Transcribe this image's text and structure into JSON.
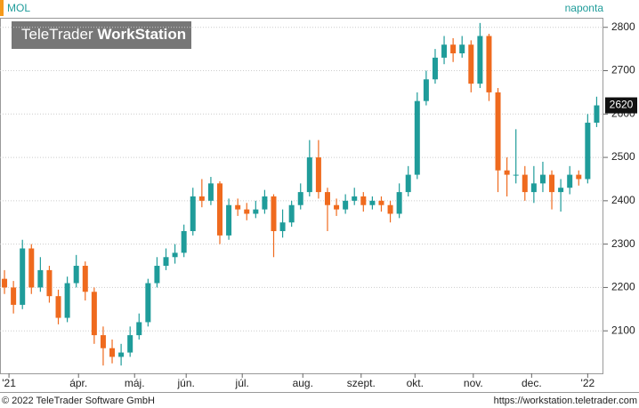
{
  "chart_data": {
    "type": "candlestick",
    "title": "MOL",
    "subtitle": "naponta",
    "watermark": {
      "brand": "TeleTrader",
      "product": "WorkStation"
    },
    "up_color": "#1f9c9a",
    "down_color": "#ef6a1e",
    "x": [
      1,
      5,
      9,
      13,
      17,
      21,
      25,
      29,
      33,
      37,
      41,
      45,
      49,
      53,
      57,
      61,
      65,
      69,
      73,
      77,
      81,
      85,
      89,
      93,
      97,
      101,
      105,
      109,
      113,
      117,
      121,
      125,
      129,
      133,
      137,
      141,
      145,
      149,
      153,
      157,
      161,
      165,
      169,
      173,
      177,
      181,
      185,
      189,
      193,
      197,
      201,
      205,
      209,
      213,
      217,
      221,
      225,
      229,
      233,
      237,
      241,
      245,
      249,
      253,
      257,
      261,
      265
    ],
    "open": [
      2220,
      2200,
      2160,
      2290,
      2200,
      2240,
      2180,
      2130,
      2210,
      2250,
      2190,
      2090,
      2060,
      2040,
      2050,
      2090,
      2120,
      2210,
      2250,
      2270,
      2280,
      2330,
      2410,
      2400,
      2440,
      2320,
      2390,
      2380,
      2370,
      2380,
      2410,
      2330,
      2350,
      2390,
      2420,
      2500,
      2420,
      2390,
      2380,
      2400,
      2410,
      2390,
      2400,
      2390,
      2370,
      2420,
      2460,
      2630,
      2680,
      2730,
      2760,
      2740,
      2760,
      2670,
      2780,
      2650,
      2470,
      2460,
      2460,
      2420,
      2440,
      2460,
      2420,
      2430,
      2460,
      2450,
      2580
    ],
    "high": [
      2240,
      2215,
      2310,
      2300,
      2270,
      2250,
      2195,
      2225,
      2275,
      2260,
      2200,
      2110,
      2080,
      2070,
      2110,
      2140,
      2220,
      2270,
      2290,
      2300,
      2345,
      2430,
      2450,
      2455,
      2445,
      2405,
      2405,
      2395,
      2400,
      2425,
      2415,
      2380,
      2400,
      2440,
      2540,
      2540,
      2430,
      2405,
      2415,
      2430,
      2420,
      2410,
      2410,
      2400,
      2440,
      2480,
      2650,
      2700,
      2750,
      2780,
      2775,
      2780,
      2770,
      2810,
      2785,
      2660,
      2500,
      2565,
      2480,
      2480,
      2490,
      2470,
      2450,
      2480,
      2470,
      2600,
      2640
    ],
    "low": [
      2185,
      2140,
      2150,
      2185,
      2190,
      2165,
      2115,
      2120,
      2200,
      2170,
      2070,
      2020,
      2025,
      2020,
      2040,
      2080,
      2110,
      2200,
      2240,
      2255,
      2270,
      2320,
      2385,
      2390,
      2300,
      2310,
      2365,
      2355,
      2360,
      2370,
      2270,
      2315,
      2340,
      2380,
      2410,
      2405,
      2330,
      2365,
      2370,
      2390,
      2375,
      2380,
      2375,
      2350,
      2360,
      2410,
      2450,
      2620,
      2670,
      2715,
      2720,
      2730,
      2650,
      2660,
      2630,
      2420,
      2410,
      2440,
      2400,
      2395,
      2420,
      2380,
      2375,
      2415,
      2435,
      2440,
      2570
    ],
    "close": [
      2200,
      2160,
      2290,
      2200,
      2240,
      2180,
      2130,
      2210,
      2250,
      2190,
      2090,
      2060,
      2040,
      2050,
      2090,
      2120,
      2210,
      2250,
      2270,
      2280,
      2330,
      2410,
      2400,
      2440,
      2320,
      2390,
      2380,
      2370,
      2380,
      2410,
      2330,
      2350,
      2390,
      2420,
      2500,
      2420,
      2390,
      2380,
      2400,
      2410,
      2390,
      2400,
      2390,
      2370,
      2420,
      2460,
      2630,
      2680,
      2730,
      2760,
      2740,
      2760,
      2670,
      2780,
      2650,
      2470,
      2460,
      2460,
      2420,
      2440,
      2460,
      2420,
      2430,
      2460,
      2450,
      2580,
      2620
    ],
    "xlim": [
      -1,
      268
    ],
    "xticks": [
      {
        "value": 3,
        "label": "'21"
      },
      {
        "value": 34,
        "label": "ápr."
      },
      {
        "value": 59,
        "label": "máj."
      },
      {
        "value": 82,
        "label": "jún."
      },
      {
        "value": 107,
        "label": "júl."
      },
      {
        "value": 134,
        "label": "aug."
      },
      {
        "value": 160,
        "label": "szept."
      },
      {
        "value": 184,
        "label": "okt."
      },
      {
        "value": 210,
        "label": "nov."
      },
      {
        "value": 236,
        "label": "dec."
      },
      {
        "value": 261,
        "label": "'22"
      }
    ],
    "ylim": [
      2002,
      2822
    ],
    "yticks": [
      2100,
      2200,
      2300,
      2400,
      2500,
      2600,
      2700,
      2800
    ],
    "grid": true
  },
  "footer": {
    "copyright": "© 2022 TeleTrader Software GmbH",
    "url": "https://workstation.teletrader.com"
  }
}
